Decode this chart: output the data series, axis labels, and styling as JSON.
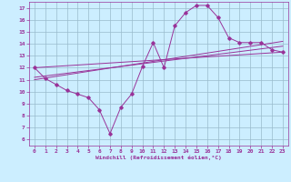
{
  "xlabel": "Windchill (Refroidissement éolien,°C)",
  "xlim": [
    -0.5,
    23.5
  ],
  "ylim": [
    5.5,
    17.5
  ],
  "xticks": [
    0,
    1,
    2,
    3,
    4,
    5,
    6,
    7,
    8,
    9,
    10,
    11,
    12,
    13,
    14,
    15,
    16,
    17,
    18,
    19,
    20,
    21,
    22,
    23
  ],
  "yticks": [
    6,
    7,
    8,
    9,
    10,
    11,
    12,
    13,
    14,
    15,
    16,
    17
  ],
  "bg_color": "#cceeff",
  "line_color": "#993399",
  "grid_color": "#99bbcc",
  "lines": [
    {
      "x": [
        0,
        1,
        2,
        3,
        4,
        5,
        6,
        7,
        8,
        9,
        10,
        11,
        12,
        13,
        14,
        15,
        16,
        17,
        18,
        19,
        20,
        21,
        22,
        23
      ],
      "y": [
        12,
        11.1,
        10.6,
        10.1,
        9.8,
        9.5,
        8.5,
        6.5,
        8.7,
        9.8,
        12.1,
        14.1,
        12,
        15.5,
        16.6,
        17.2,
        17.2,
        16.2,
        14.5,
        14.1,
        14.1,
        14.1,
        13.5,
        13.3
      ]
    },
    {
      "x": [
        0,
        23
      ],
      "y": [
        12.0,
        13.3
      ]
    },
    {
      "x": [
        0,
        23
      ],
      "y": [
        11.2,
        13.8
      ]
    },
    {
      "x": [
        0,
        23
      ],
      "y": [
        11.0,
        14.2
      ]
    }
  ]
}
